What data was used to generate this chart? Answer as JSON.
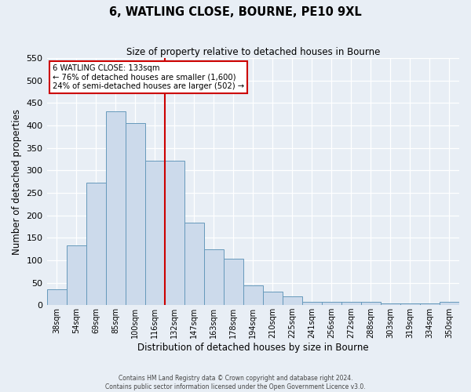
{
  "title": "6, WATLING CLOSE, BOURNE, PE10 9XL",
  "subtitle": "Size of property relative to detached houses in Bourne",
  "xlabel": "Distribution of detached houses by size in Bourne",
  "ylabel": "Number of detached properties",
  "bin_labels": [
    "38sqm",
    "54sqm",
    "69sqm",
    "85sqm",
    "100sqm",
    "116sqm",
    "132sqm",
    "147sqm",
    "163sqm",
    "178sqm",
    "194sqm",
    "210sqm",
    "225sqm",
    "241sqm",
    "256sqm",
    "272sqm",
    "288sqm",
    "303sqm",
    "319sqm",
    "334sqm",
    "350sqm"
  ],
  "bar_heights": [
    35,
    133,
    272,
    432,
    405,
    322,
    322,
    183,
    125,
    104,
    44,
    30,
    19,
    7,
    7,
    7,
    7,
    4,
    4,
    4,
    7
  ],
  "bar_color": "#ccdaeb",
  "bar_edge_color": "#6699bb",
  "vline_x_index": 6,
  "vline_color": "#cc0000",
  "annotation_title": "6 WATLING CLOSE: 133sqm",
  "annotation_line1": "← 76% of detached houses are smaller (1,600)",
  "annotation_line2": "24% of semi-detached houses are larger (502) →",
  "annotation_box_edgecolor": "#cc0000",
  "ylim": [
    0,
    550
  ],
  "yticks": [
    0,
    50,
    100,
    150,
    200,
    250,
    300,
    350,
    400,
    450,
    500,
    550
  ],
  "footer1": "Contains HM Land Registry data © Crown copyright and database right 2024.",
  "footer2": "Contains public sector information licensed under the Open Government Licence v3.0.",
  "bg_color": "#e8eef5",
  "figsize": [
    6.0,
    5.0
  ],
  "dpi": 100
}
